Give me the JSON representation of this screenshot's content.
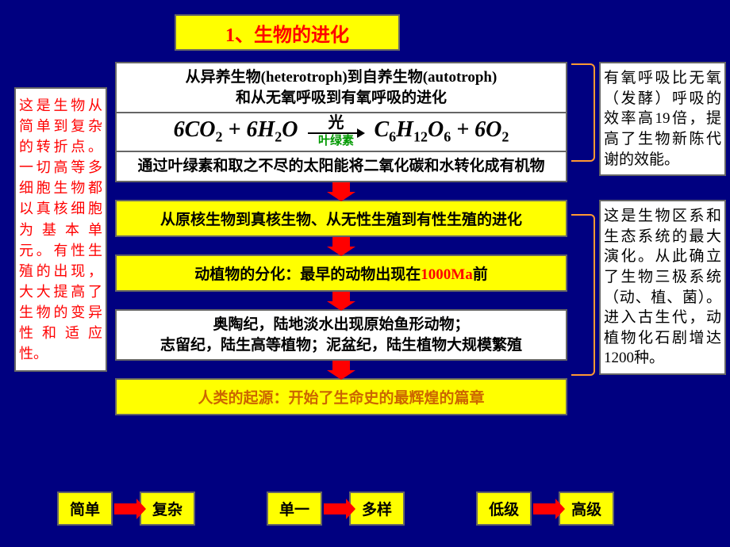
{
  "colors": {
    "page_bg": "#000080",
    "yellow": "#ffff00",
    "white": "#ffffff",
    "border": "#666666",
    "red": "#ff0000",
    "title_red": "#ff0000",
    "bracket": "#ff9933",
    "green": "#009900",
    "orange": "#cc6600",
    "highlight_red": "#ff0000"
  },
  "title": "1、生物的进化",
  "left_note": "这是生物从简单到复杂的转折点。一切高等多细胞生物都以真核细胞为基本单元。有性生殖的出现，大大提高了生物的变异性和适应性。",
  "right_note_1": "有氧呼吸比无氧（发酵）呼吸的效率高19倍，提高了生物新陈代谢的效能。",
  "right_note_2": "这是生物区系和生态系统的最大演化。从此确立了生物三极系统（动、植、菌）。进入古生代，动植物化石剧增达1200种。",
  "flow": {
    "box1_line1": "从异养生物(heterotroph)到自养生物(autotroph)",
    "box1_line2": "和从无氧呼吸到有氧呼吸的进化",
    "formula": {
      "left": "6CO₂ + 6H₂O",
      "arrow_top": "光",
      "arrow_bottom": "叶绿素",
      "right": "C₆H₁₂O₆ + 6O₂"
    },
    "box3": "通过叶绿素和取之不尽的太阳能将二氧化碳和水转化成有机物",
    "box4": "从原核生物到真核生物、从无性生殖到有性生殖的进化",
    "box5_prefix": "动植物的分化：最早的动物出现在",
    "box5_red": "1000Ma",
    "box5_suffix": "前",
    "box6_line1": "奥陶纪，陆地淡水出现原始鱼形动物；",
    "box6_line2": "志留纪，陆生高等植物；泥盆纪，陆生植物大规模繁殖",
    "box7": "人类的起源：开始了生命史的最辉煌的篇章"
  },
  "bottom": {
    "pair1_a": "简单",
    "pair1_b": "复杂",
    "pair2_a": "单一",
    "pair2_b": "多样",
    "pair3_a": "低级",
    "pair3_b": "高级"
  }
}
